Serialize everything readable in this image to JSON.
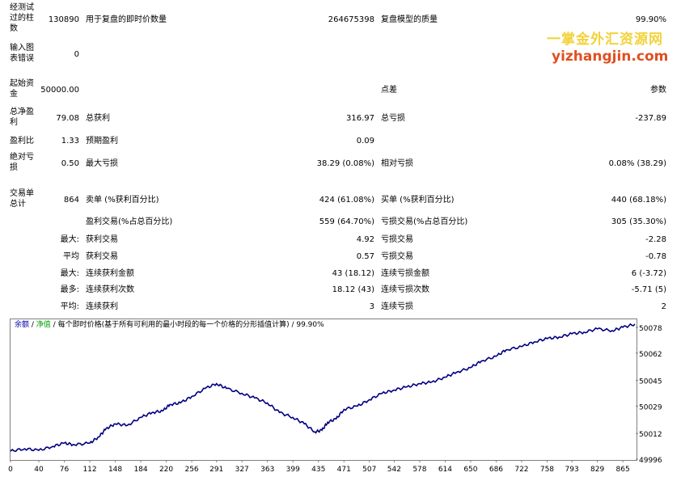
{
  "report": {
    "bars": {
      "label": "经测试过的柱数",
      "value": "130890"
    },
    "ticks": {
      "label": "用于复盘的即时价数量",
      "value": "264675398"
    },
    "quality": {
      "label": "复盘模型的质量",
      "value": "99.90%"
    },
    "errors": {
      "label": "输入图表错误",
      "value": "0"
    },
    "deposit": {
      "label": "起始资金",
      "value": "50000.00"
    },
    "spread_label": "点差",
    "params_label": "参数",
    "net_profit": {
      "label": "总净盈利",
      "value": "79.08"
    },
    "gross_profit": {
      "label": "总获利",
      "value": "316.97"
    },
    "gross_loss": {
      "label": "总亏损",
      "value": "-237.89"
    },
    "profit_factor": {
      "label": "盈利比",
      "value": "1.33"
    },
    "expected_payoff": {
      "label": "预期盈利",
      "value": "0.09"
    },
    "abs_dd": {
      "label": "绝对亏损",
      "value": "0.50"
    },
    "max_dd": {
      "label": "最大亏损",
      "value": "38.29 (0.08%)"
    },
    "rel_dd": {
      "label": "相对亏损",
      "value": "0.08% (38.29)"
    },
    "total_trades": {
      "label": "交易单总计",
      "value": "864"
    },
    "short": {
      "label": "卖单 (%获利百分比)",
      "value": "424 (61.08%)"
    },
    "long": {
      "label": "买单 (%获利百分比)",
      "value": "440 (68.18%)"
    },
    "profit_trades": {
      "label": "盈利交易(%占总百分比)",
      "value": "559 (64.70%)"
    },
    "loss_trades": {
      "label": "亏损交易(%占总百分比)",
      "value": "305 (35.30%)"
    },
    "largest_prefix": "最大:",
    "largest_profit": {
      "label": "获利交易",
      "value": "4.92"
    },
    "largest_loss": {
      "label": "亏损交易",
      "value": "-2.28"
    },
    "average_prefix": "平均",
    "average_profit": {
      "label": "获利交易",
      "value": "0.57"
    },
    "average_loss": {
      "label": "亏损交易",
      "value": "-0.78"
    },
    "max_prefix": "最大:",
    "max_cons_wins": {
      "label": "连续获利金额",
      "value": "43 (18.12)"
    },
    "max_cons_losses": {
      "label": "连续亏损金额",
      "value": "6 (-3.72)"
    },
    "most_prefix": "最多:",
    "max_cons_profit": {
      "label": "连续获利次数",
      "value": "18.12 (43)"
    },
    "max_cons_loss": {
      "label": "连续亏损次数",
      "value": "-5.71 (5)"
    },
    "avg_prefix": "平均:",
    "avg_cons_wins": {
      "label": "连续获利",
      "value": "3"
    },
    "avg_cons_losses": {
      "label": "连续亏损",
      "value": "2"
    }
  },
  "watermark": {
    "line1": "一掌金外汇资源网",
    "line2": "yizhangjin.com"
  },
  "legend": {
    "balance": "余额",
    "sep1": " / ",
    "equity": "净值",
    "sep2": " / ",
    "desc": "每个即时价格(基于所有可利用的最小时段的每一个价格的分形插值计算) / 99.90%"
  },
  "chart_data": {
    "type": "line",
    "title": "",
    "x_ticks": [
      0,
      40,
      76,
      112,
      148,
      184,
      220,
      256,
      291,
      327,
      363,
      399,
      435,
      471,
      507,
      542,
      578,
      614,
      650,
      686,
      722,
      758,
      793,
      829,
      865
    ],
    "y_ticks": [
      50078,
      50062,
      50045,
      50029,
      50012,
      49996
    ],
    "xlim": [
      0,
      882
    ],
    "ylim": [
      49996,
      50083
    ],
    "series": [
      {
        "color": "#000080",
        "x": [
          0,
          20,
          40,
          60,
          76,
          90,
          112,
          125,
          135,
          148,
          165,
          184,
          200,
          215,
          225,
          240,
          256,
          275,
          291,
          305,
          327,
          345,
          363,
          380,
          399,
          415,
          430,
          440,
          448,
          460,
          471,
          490,
          507,
          525,
          542,
          560,
          578,
          595,
          614,
          630,
          650,
          665,
          686,
          700,
          722,
          740,
          758,
          775,
          793,
          810,
          829,
          850,
          865,
          882
        ],
        "y": [
          50001,
          50002.5,
          50001.5,
          50004,
          50006,
          50005,
          50006,
          50010,
          50015,
          50018,
          50017,
          50022,
          50025,
          50026,
          50030,
          50031,
          50035,
          50040,
          50043,
          50040,
          50037,
          50034,
          50031,
          50025,
          50022,
          50018,
          50013,
          50014,
          50019,
          50021,
          50027,
          50029,
          50033,
          50037,
          50039,
          50041,
          50043,
          50044,
          50047,
          50050,
          50053,
          50057,
          50060,
          50064,
          50066,
          50069,
          50071,
          50072,
          50074,
          50075,
          50077,
          50076,
          50078,
          50080
        ]
      }
    ]
  }
}
